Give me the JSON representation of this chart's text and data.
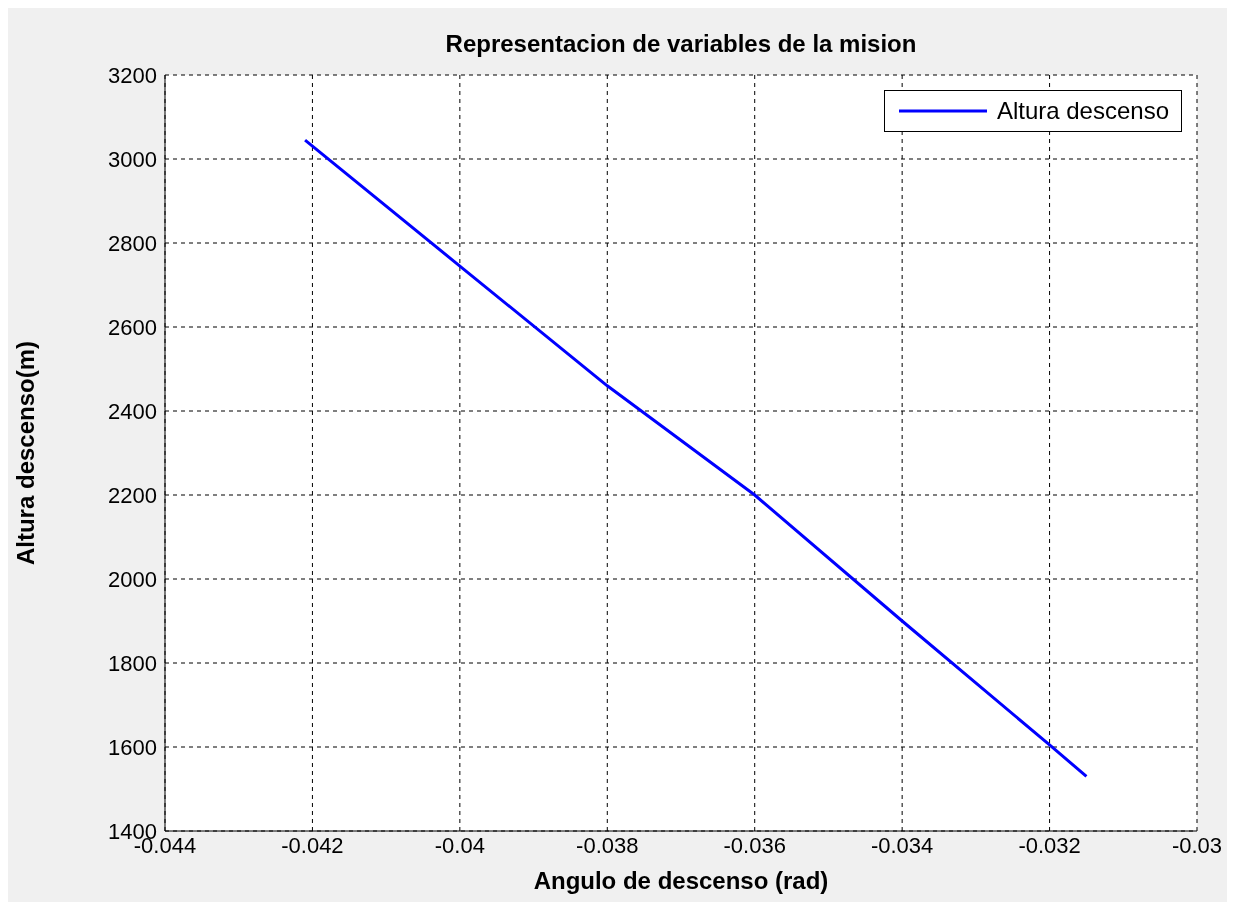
{
  "chart_data": {
    "type": "line",
    "title": "Representacion de variables de la mision",
    "xlabel": "Angulo de descenso (rad)",
    "ylabel": "Altura descenso(m)",
    "x": [
      -0.0421,
      -0.04,
      -0.038,
      -0.036,
      -0.034,
      -0.032,
      -0.0315
    ],
    "series": [
      {
        "name": "Altura descenso",
        "color": "#0000ff",
        "values": [
          3045,
          2745,
          2460,
          2200,
          1900,
          1605,
          1530
        ]
      }
    ],
    "xlim": [
      -0.044,
      -0.03
    ],
    "xticks": [
      -0.044,
      -0.042,
      -0.04,
      -0.038,
      -0.036,
      -0.034,
      -0.032,
      -0.03
    ],
    "ylim": [
      1400,
      3200
    ],
    "yticks": [
      1400,
      1600,
      1800,
      2000,
      2200,
      2400,
      2600,
      2800,
      3000,
      3200
    ],
    "grid": true,
    "legend": "top right",
    "marker": "none",
    "line_style": "solid"
  }
}
